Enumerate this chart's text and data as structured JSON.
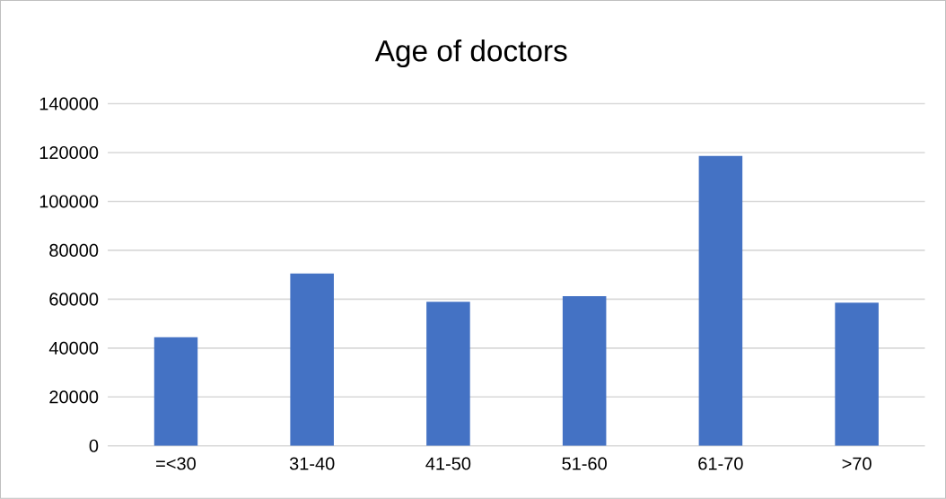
{
  "chart_data": {
    "type": "bar",
    "title": "Age of doctors",
    "categories": [
      "=<30",
      "31-40",
      "41-50",
      "51-60",
      "61-70",
      ">70"
    ],
    "values": [
      44400,
      70500,
      58900,
      61250,
      118600,
      58550
    ],
    "color": "#4472c4",
    "ylim": [
      0,
      140000
    ],
    "yticks": [
      0,
      20000,
      40000,
      60000,
      80000,
      100000,
      120000,
      140000
    ],
    "grid": "y"
  }
}
